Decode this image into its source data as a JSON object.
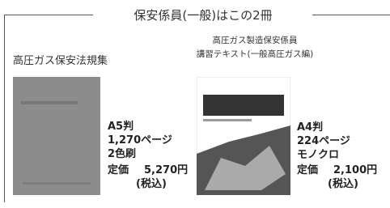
{
  "header": {
    "title": "保安係員(一般)はこの2冊"
  },
  "books": [
    {
      "title": [
        "高圧ガス保安法規集"
      ],
      "specs": [
        "A5判",
        "1,270ページ",
        "2色刷"
      ],
      "price_label": "定価",
      "price": "5,270円",
      "tax": "(税込)"
    },
    {
      "title": [
        "高圧ガス製造保安係員",
        "講習テキスト(一般高圧ガス編)"
      ],
      "specs": [
        "A4判",
        "224ページ",
        "モノクロ"
      ],
      "price_label": "定価",
      "price": "2,100円",
      "tax": "(税込)"
    }
  ]
}
